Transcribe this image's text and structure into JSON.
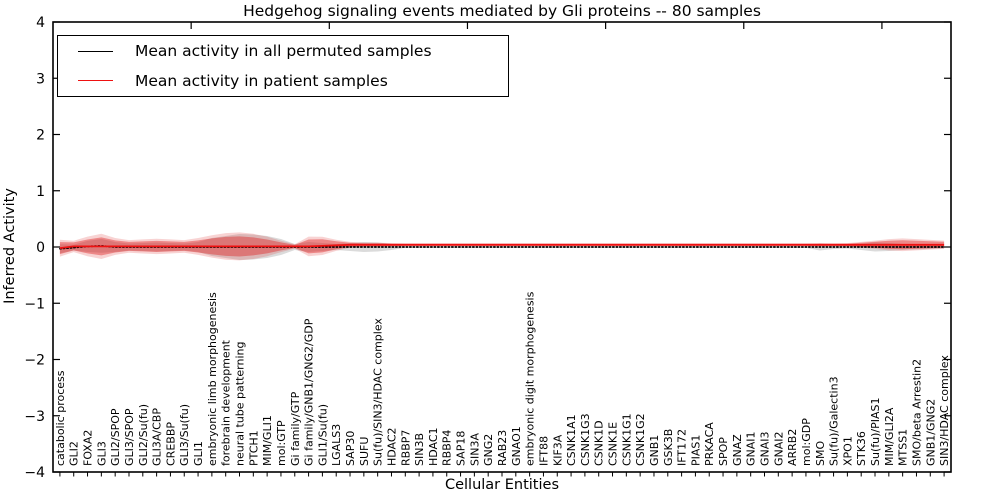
{
  "colors": {
    "background": "#ffffff",
    "axis": "#000000",
    "permuted_line": "#000000",
    "patient_line": "#ee1111",
    "permuted_band": "#888888",
    "patient_band": "#dd2222"
  },
  "chart_data": {
    "type": "line",
    "title": "Hedgehog signaling events mediated by Gli proteins -- 80 samples",
    "xlabel": "Cellular Entities",
    "ylabel": "Inferred Activity",
    "ylim": [
      -4,
      4
    ],
    "ytick_labels": [
      "4",
      "3",
      "2",
      "1",
      "0",
      "−1",
      "−2",
      "−3",
      "−4"
    ],
    "ytick_values": [
      4,
      3,
      2,
      1,
      0,
      -1,
      -2,
      -3,
      -4
    ],
    "xtick_major_positions": [
      10,
      20,
      30,
      40,
      50,
      60
    ],
    "grid": false,
    "legend_position": "upper left",
    "categories": [
      "catabolic process",
      "GLI2",
      "FOXA2",
      "GLI3",
      "GLI2/SPOP",
      "GLI3/SPOP",
      "GLI2/Su(fu)",
      "GLI3A/CBP",
      "CREBBP",
      "GLI3/Su(fu)",
      "GLI1",
      "embryonic limb morphogenesis",
      "forebrain development",
      "neural tube patterning",
      "PTCH1",
      "MIM/GLI1",
      "mol:GTP",
      "Gi family/GTP",
      "Gi family/GNB1/GNG2/GDP",
      "GLI1/Su(fu)",
      "LGALS3",
      "SAP30",
      "SUFU",
      "Su(fu)/SIN3/HDAC complex",
      "HDAC2",
      "RBBP7",
      "SIN3B",
      "HDAC1",
      "RBBP4",
      "SAP18",
      "SIN3A",
      "GNG2",
      "RAB23",
      "GNAO1",
      "embryonic digit morphogenesis",
      "IFT88",
      "KIF3A",
      "CSNK1A1",
      "CSNK1G3",
      "CSNK1D",
      "CSNK1E",
      "CSNK1G1",
      "CSNK1G2",
      "GNB1",
      "GSK3B",
      "IFT172",
      "PIAS1",
      "PRKACA",
      "SPOP",
      "GNAZ",
      "GNAI1",
      "GNAI3",
      "GNAI2",
      "ARRB2",
      "mol:GDP",
      "SMO",
      "Su(fu)/Galectin3",
      "XPO1",
      "STK36",
      "Su(fu)/PIAS1",
      "MIM/GLI2A",
      "MTSS1",
      "SMO/beta Arrestin2",
      "GNB1/GNG2",
      "SIN3/HDAC complex"
    ],
    "series": [
      {
        "name": "Mean activity in all permuted samples",
        "color": "#000000",
        "line_style": "dotted",
        "values": [
          -0.03,
          -0.01,
          0.01,
          0.02,
          0,
          0,
          0,
          0,
          0,
          0,
          0,
          0,
          0,
          0,
          0,
          0,
          0,
          0,
          0,
          0,
          0,
          0,
          0,
          0,
          0,
          0,
          0,
          0,
          0,
          0,
          0,
          0,
          0,
          0,
          0,
          0,
          0,
          0,
          0,
          0,
          0,
          0,
          0,
          0,
          0,
          0,
          0,
          0,
          0,
          0,
          0,
          0,
          0,
          0,
          0,
          0,
          0,
          0,
          0,
          0,
          0,
          0,
          0,
          0,
          0
        ]
      },
      {
        "name": "Mean activity in patient samples",
        "color": "#ee1111",
        "line_style": "solid",
        "values": [
          -0.02,
          0.01,
          0.01,
          0.01,
          0.01,
          0.01,
          0.01,
          0.01,
          0.01,
          0.01,
          0.01,
          0.01,
          0.01,
          0.01,
          0.01,
          0.01,
          0.01,
          0.01,
          0.01,
          0.02,
          0.03,
          0.04,
          0.04,
          0.04,
          0.04,
          0.04,
          0.04,
          0.04,
          0.04,
          0.04,
          0.04,
          0.04,
          0.04,
          0.04,
          0.04,
          0.04,
          0.04,
          0.04,
          0.04,
          0.04,
          0.04,
          0.04,
          0.04,
          0.04,
          0.04,
          0.04,
          0.04,
          0.04,
          0.04,
          0.04,
          0.04,
          0.04,
          0.04,
          0.04,
          0.04,
          0.04,
          0.04,
          0.04,
          0.04,
          0.04,
          0.04,
          0.04,
          0.04,
          0.04,
          0.04
        ]
      }
    ],
    "bands": [
      {
        "name": "permuted-samples-spread",
        "color": "#888888",
        "opacity": 0.3,
        "center_series": 0,
        "halfwidths": [
          0.08,
          0.053,
          0.098,
          0.124,
          0.089,
          0.062,
          0.071,
          0.08,
          0.071,
          0.062,
          0.089,
          0.16,
          0.196,
          0.231,
          0.222,
          0.196,
          0.142,
          0.053,
          0.089,
          0.071,
          0.053,
          0.071,
          0.089,
          0.08,
          0.053,
          0.014,
          0.014,
          0.014,
          0.014,
          0.014,
          0.014,
          0.014,
          0.014,
          0.014,
          0.014,
          0.014,
          0.014,
          0.014,
          0.014,
          0.014,
          0.014,
          0.014,
          0.014,
          0.014,
          0.014,
          0.014,
          0.014,
          0.014,
          0.014,
          0.014,
          0.014,
          0.014,
          0.014,
          0.014,
          0.014,
          0.062,
          0.036,
          0.027,
          0.053,
          0.08,
          0.071,
          0.053,
          0.044,
          0.036,
          0.027
        ]
      },
      {
        "name": "patient-samples-spread-outer",
        "color": "#dd2222",
        "opacity": 0.2,
        "center_series": 1,
        "halfwidths": [
          0.15,
          0.1,
          0.174,
          0.224,
          0.15,
          0.112,
          0.125,
          0.137,
          0.125,
          0.112,
          0.15,
          0.199,
          0.237,
          0.249,
          0.224,
          0.174,
          0.1,
          0.038,
          0.174,
          0.162,
          0.1,
          0.05,
          0.038,
          0.038,
          0.029,
          0.025,
          0.025,
          0.025,
          0.025,
          0.025,
          0.025,
          0.025,
          0.025,
          0.025,
          0.025,
          0.025,
          0.025,
          0.025,
          0.025,
          0.025,
          0.025,
          0.025,
          0.025,
          0.025,
          0.025,
          0.025,
          0.025,
          0.025,
          0.025,
          0.025,
          0.025,
          0.025,
          0.025,
          0.025,
          0.025,
          0.029,
          0.025,
          0.029,
          0.05,
          0.074,
          0.1,
          0.112,
          0.1,
          0.087,
          0.074
        ]
      },
      {
        "name": "patient-samples-spread-inner",
        "color": "#dd2222",
        "opacity": 0.42,
        "center_series": 1,
        "halfwidths": [
          0.107,
          0.071,
          0.124,
          0.16,
          0.107,
          0.08,
          0.089,
          0.098,
          0.089,
          0.08,
          0.107,
          0.142,
          0.169,
          0.178,
          0.16,
          0.124,
          0.071,
          0.027,
          0.124,
          0.116,
          0.071,
          0.036,
          0.027,
          0.027,
          0.021,
          0.018,
          0.018,
          0.018,
          0.018,
          0.018,
          0.018,
          0.018,
          0.018,
          0.018,
          0.018,
          0.018,
          0.018,
          0.018,
          0.018,
          0.018,
          0.018,
          0.018,
          0.018,
          0.018,
          0.018,
          0.018,
          0.018,
          0.018,
          0.018,
          0.018,
          0.018,
          0.018,
          0.018,
          0.018,
          0.018,
          0.021,
          0.018,
          0.021,
          0.036,
          0.053,
          0.071,
          0.08,
          0.071,
          0.062,
          0.053
        ]
      }
    ]
  }
}
